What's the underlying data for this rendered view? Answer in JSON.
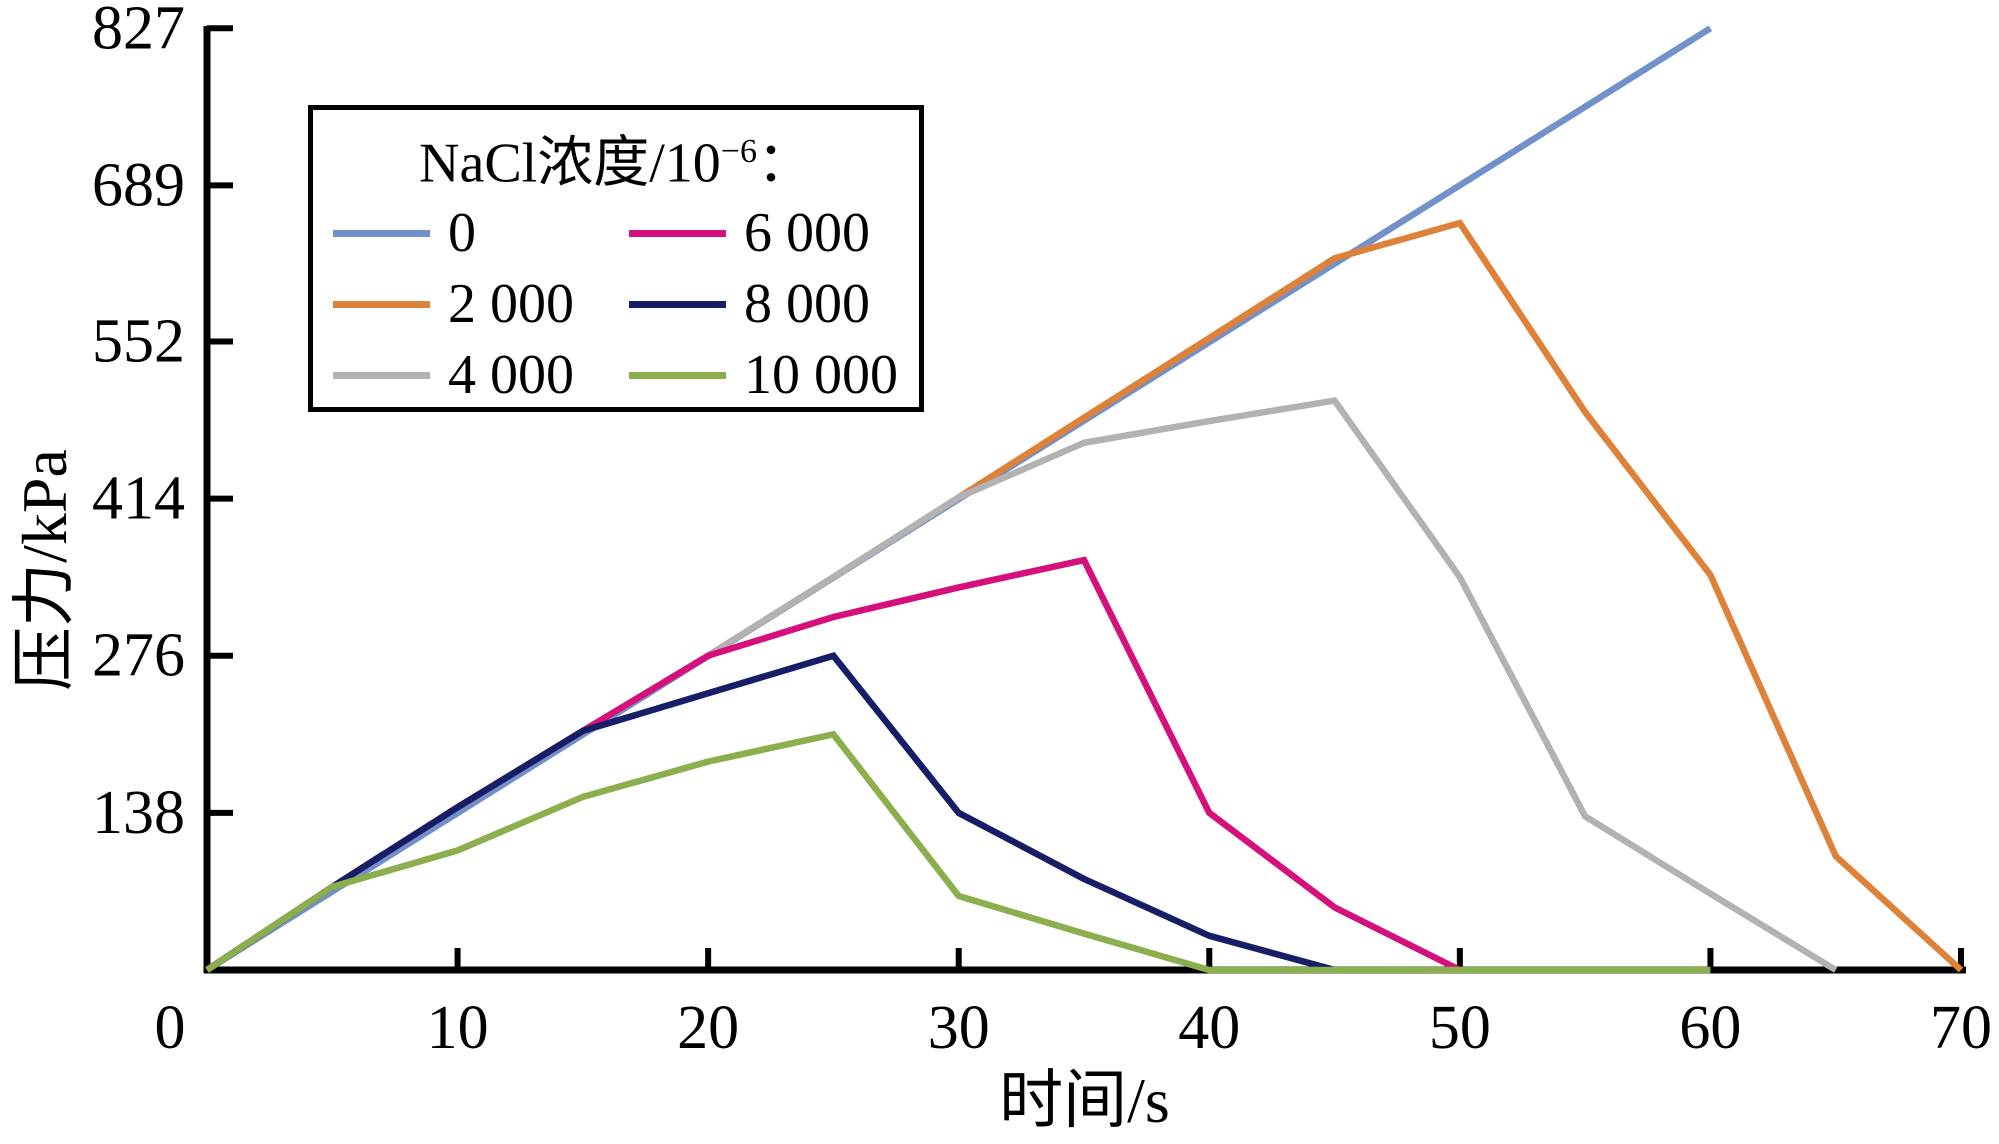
{
  "chart_data": {
    "type": "line",
    "title": "",
    "xlabel": "时间/s",
    "ylabel": "压力/kPa",
    "xlim": [
      0,
      70
    ],
    "ylim": [
      0,
      827
    ],
    "x_ticks": [
      0,
      10,
      20,
      30,
      40,
      50,
      60,
      70
    ],
    "y_ticks": [
      138,
      276,
      414,
      552,
      689,
      827
    ],
    "grid": false,
    "legend_position": "upper-left-inside",
    "series": [
      {
        "name": "0",
        "color": "#7290C9",
        "points": [
          [
            0,
            0
          ],
          [
            60,
            827
          ]
        ]
      },
      {
        "name": "2 000",
        "color": "#DE8139",
        "points": [
          [
            0,
            0
          ],
          [
            5,
            73
          ],
          [
            10,
            143
          ],
          [
            15,
            210
          ],
          [
            20,
            276
          ],
          [
            25,
            345
          ],
          [
            30,
            415
          ],
          [
            35,
            485
          ],
          [
            40,
            555
          ],
          [
            45,
            625
          ],
          [
            50,
            656
          ],
          [
            55,
            490
          ],
          [
            60,
            347
          ],
          [
            65,
            100
          ],
          [
            70,
            0
          ]
        ]
      },
      {
        "name": "4 000",
        "color": "#B2B2B2",
        "points": [
          [
            0,
            0
          ],
          [
            5,
            73
          ],
          [
            10,
            143
          ],
          [
            15,
            210
          ],
          [
            20,
            276
          ],
          [
            25,
            345
          ],
          [
            30,
            415
          ],
          [
            35,
            463
          ],
          [
            40,
            482
          ],
          [
            45,
            500
          ],
          [
            50,
            345
          ],
          [
            55,
            135
          ],
          [
            60,
            67
          ],
          [
            65,
            0
          ]
        ]
      },
      {
        "name": "6 000",
        "color": "#D5107C",
        "points": [
          [
            0,
            0
          ],
          [
            5,
            73
          ],
          [
            10,
            143
          ],
          [
            15,
            210
          ],
          [
            20,
            276
          ],
          [
            25,
            310
          ],
          [
            30,
            336
          ],
          [
            35,
            360
          ],
          [
            40,
            138
          ],
          [
            45,
            55
          ],
          [
            50,
            0
          ]
        ]
      },
      {
        "name": "8 000",
        "color": "#161E67",
        "points": [
          [
            0,
            0
          ],
          [
            5,
            73
          ],
          [
            10,
            143
          ],
          [
            15,
            210
          ],
          [
            20,
            243
          ],
          [
            25,
            276
          ],
          [
            30,
            138
          ],
          [
            35,
            80
          ],
          [
            40,
            30
          ],
          [
            45,
            0
          ]
        ]
      },
      {
        "name": "10 000",
        "color": "#8AAF4C",
        "points": [
          [
            0,
            0
          ],
          [
            5,
            73
          ],
          [
            10,
            105
          ],
          [
            15,
            152
          ],
          [
            20,
            183
          ],
          [
            25,
            207
          ],
          [
            30,
            65
          ],
          [
            35,
            32
          ],
          [
            40,
            0
          ],
          [
            60,
            0
          ]
        ]
      }
    ]
  },
  "legend": {
    "title_prefix": "NaCl浓度/10",
    "title_sup": "−6",
    "title_colon": "："
  },
  "style": {
    "axis_color": "#000000",
    "background": "#ffffff"
  }
}
